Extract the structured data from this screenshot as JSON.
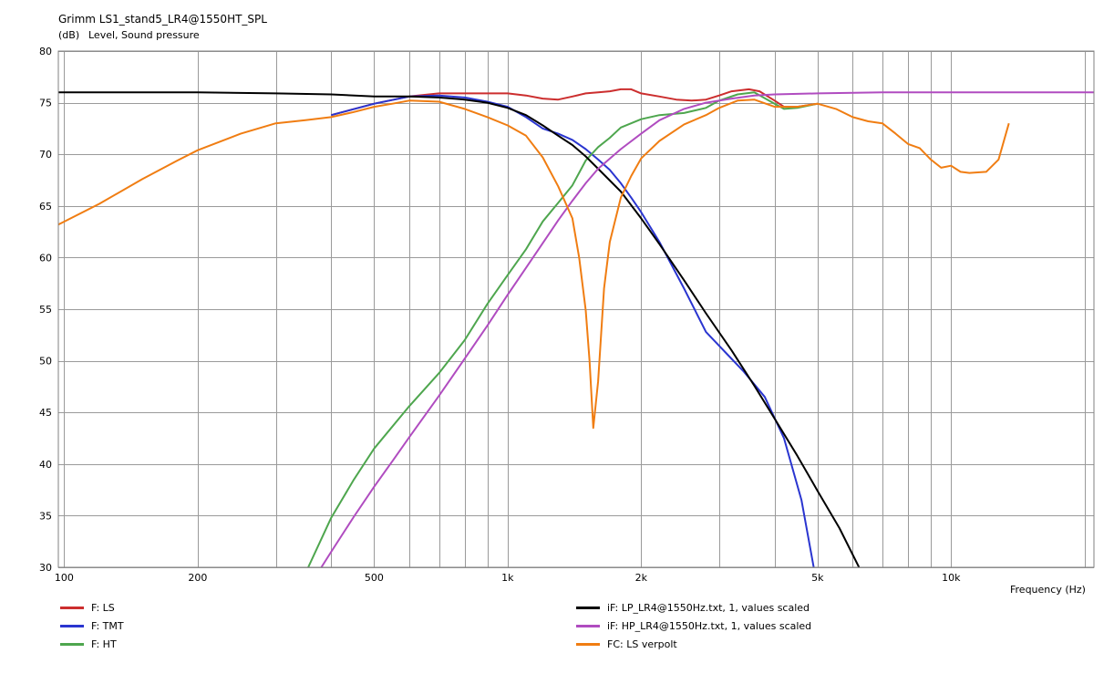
{
  "title": "Grimm LS1_stand5_LR4@1550HT_SPL",
  "ylabel_unit": "(dB)",
  "ylabel_text": "Level, Sound pressure",
  "xlabel": "Frequency  (Hz)",
  "chart_data": {
    "type": "line",
    "title": "Grimm LS1_stand5_LR4@1550HT_SPL",
    "xlabel": "Frequency  (Hz)",
    "ylabel": "(dB)  Level, Sound pressure",
    "x_scale": "log",
    "xlim": [
      97,
      21000
    ],
    "ylim": [
      30,
      80
    ],
    "grid": true,
    "legend_placement": "bottom",
    "x_tick_labels": [
      {
        "value": 100,
        "label": "100"
      },
      {
        "value": 200,
        "label": "200"
      },
      {
        "value": 500,
        "label": "500"
      },
      {
        "value": 1000,
        "label": "1k"
      },
      {
        "value": 2000,
        "label": "2k"
      },
      {
        "value": 5000,
        "label": "5k"
      },
      {
        "value": 10000,
        "label": "10k"
      }
    ],
    "y_ticks": [
      30,
      35,
      40,
      45,
      50,
      55,
      60,
      65,
      70,
      75,
      80
    ],
    "series": [
      {
        "name": "F: LS",
        "color": "#cc2e2e",
        "points": [
          [
            400,
            73.8
          ],
          [
            500,
            74.9
          ],
          [
            600,
            75.6
          ],
          [
            700,
            75.9
          ],
          [
            800,
            75.9
          ],
          [
            900,
            75.9
          ],
          [
            1000,
            75.9
          ],
          [
            1100,
            75.7
          ],
          [
            1200,
            75.4
          ],
          [
            1300,
            75.3
          ],
          [
            1400,
            75.6
          ],
          [
            1500,
            75.9
          ],
          [
            1600,
            76.0
          ],
          [
            1700,
            76.1
          ],
          [
            1800,
            76.3
          ],
          [
            1900,
            76.3
          ],
          [
            2000,
            75.9
          ],
          [
            2200,
            75.6
          ],
          [
            2400,
            75.3
          ],
          [
            2600,
            75.2
          ],
          [
            2800,
            75.3
          ],
          [
            3000,
            75.7
          ],
          [
            3200,
            76.1
          ],
          [
            3500,
            76.3
          ],
          [
            3700,
            76.1
          ],
          [
            4000,
            75.2
          ],
          [
            4200,
            74.6
          ],
          [
            4500,
            74.6
          ],
          [
            5000,
            74.9
          ]
        ]
      },
      {
        "name": "F: TMT",
        "color": "#2a35d0",
        "points": [
          [
            400,
            73.8
          ],
          [
            500,
            74.9
          ],
          [
            600,
            75.6
          ],
          [
            700,
            75.7
          ],
          [
            800,
            75.5
          ],
          [
            900,
            75.1
          ],
          [
            1000,
            74.6
          ],
          [
            1100,
            73.6
          ],
          [
            1200,
            72.5
          ],
          [
            1300,
            72.0
          ],
          [
            1400,
            71.4
          ],
          [
            1500,
            70.5
          ],
          [
            1600,
            69.5
          ],
          [
            1700,
            68.5
          ],
          [
            1800,
            67.2
          ],
          [
            1900,
            65.8
          ],
          [
            2000,
            64.4
          ],
          [
            2200,
            61.5
          ],
          [
            2500,
            57.0
          ],
          [
            2800,
            52.8
          ],
          [
            3100,
            50.8
          ],
          [
            3400,
            49.0
          ],
          [
            3800,
            46.5
          ],
          [
            4200,
            42.5
          ],
          [
            4600,
            36.5
          ],
          [
            4900,
            30.0
          ]
        ]
      },
      {
        "name": "F: HT",
        "color": "#4ea64e",
        "points": [
          [
            355,
            30.0
          ],
          [
            400,
            34.8
          ],
          [
            450,
            38.5
          ],
          [
            500,
            41.5
          ],
          [
            600,
            45.6
          ],
          [
            700,
            48.8
          ],
          [
            800,
            52.0
          ],
          [
            900,
            55.5
          ],
          [
            1000,
            58.3
          ],
          [
            1100,
            60.8
          ],
          [
            1200,
            63.5
          ],
          [
            1300,
            65.3
          ],
          [
            1400,
            67.0
          ],
          [
            1500,
            69.4
          ],
          [
            1600,
            70.7
          ],
          [
            1700,
            71.6
          ],
          [
            1800,
            72.6
          ],
          [
            2000,
            73.4
          ],
          [
            2200,
            73.8
          ],
          [
            2500,
            74.0
          ],
          [
            2800,
            74.5
          ],
          [
            3000,
            75.2
          ],
          [
            3300,
            75.8
          ],
          [
            3600,
            76.0
          ],
          [
            4000,
            74.9
          ],
          [
            4200,
            74.4
          ],
          [
            4500,
            74.5
          ],
          [
            5000,
            74.9
          ]
        ]
      },
      {
        "name": "iF: LP_LR4@1550Hz.txt, 1, values scaled",
        "color": "#000000",
        "points": [
          [
            97,
            76.0
          ],
          [
            200,
            76.0
          ],
          [
            300,
            75.9
          ],
          [
            400,
            75.8
          ],
          [
            500,
            75.6
          ],
          [
            600,
            75.6
          ],
          [
            700,
            75.5
          ],
          [
            800,
            75.3
          ],
          [
            900,
            75.0
          ],
          [
            1000,
            74.5
          ],
          [
            1100,
            73.8
          ],
          [
            1200,
            72.8
          ],
          [
            1300,
            71.8
          ],
          [
            1400,
            70.9
          ],
          [
            1500,
            69.8
          ],
          [
            1600,
            68.6
          ],
          [
            1800,
            66.4
          ],
          [
            2000,
            63.8
          ],
          [
            2200,
            61.3
          ],
          [
            2500,
            57.8
          ],
          [
            2800,
            54.6
          ],
          [
            3200,
            51.0
          ],
          [
            3600,
            47.6
          ],
          [
            4000,
            44.4
          ],
          [
            4500,
            40.8
          ],
          [
            5000,
            37.4
          ],
          [
            5600,
            33.8
          ],
          [
            6200,
            30.0
          ]
        ]
      },
      {
        "name": "iF: HP_LR4@1550Hz.txt, 1, values scaled",
        "color": "#b04cc0",
        "points": [
          [
            380,
            30.0
          ],
          [
            400,
            31.5
          ],
          [
            450,
            34.9
          ],
          [
            500,
            37.8
          ],
          [
            550,
            40.3
          ],
          [
            600,
            42.6
          ],
          [
            700,
            46.6
          ],
          [
            800,
            50.2
          ],
          [
            900,
            53.4
          ],
          [
            1000,
            56.4
          ],
          [
            1100,
            59.0
          ],
          [
            1200,
            61.4
          ],
          [
            1300,
            63.6
          ],
          [
            1400,
            65.5
          ],
          [
            1500,
            67.2
          ],
          [
            1600,
            68.6
          ],
          [
            1800,
            70.5
          ],
          [
            2000,
            72.0
          ],
          [
            2200,
            73.3
          ],
          [
            2500,
            74.4
          ],
          [
            2800,
            75.0
          ],
          [
            3200,
            75.4
          ],
          [
            3600,
            75.7
          ],
          [
            4000,
            75.8
          ],
          [
            5000,
            75.9
          ],
          [
            7000,
            76.0
          ],
          [
            10000,
            76.0
          ],
          [
            21000,
            76.0
          ]
        ]
      },
      {
        "name": "FC: LS verpolt",
        "color": "#f07d12",
        "points": [
          [
            97,
            63.2
          ],
          [
            120,
            65.2
          ],
          [
            150,
            67.6
          ],
          [
            180,
            69.4
          ],
          [
            200,
            70.4
          ],
          [
            250,
            72.0
          ],
          [
            300,
            73.0
          ],
          [
            350,
            73.3
          ],
          [
            400,
            73.6
          ],
          [
            450,
            74.1
          ],
          [
            500,
            74.6
          ],
          [
            550,
            74.9
          ],
          [
            600,
            75.2
          ],
          [
            700,
            75.1
          ],
          [
            800,
            74.4
          ],
          [
            900,
            73.6
          ],
          [
            1000,
            72.8
          ],
          [
            1100,
            71.8
          ],
          [
            1200,
            69.7
          ],
          [
            1300,
            66.9
          ],
          [
            1400,
            63.8
          ],
          [
            1450,
            60.0
          ],
          [
            1500,
            54.9
          ],
          [
            1530,
            50.0
          ],
          [
            1560,
            43.5
          ],
          [
            1600,
            48.0
          ],
          [
            1650,
            57.0
          ],
          [
            1700,
            61.5
          ],
          [
            1800,
            65.8
          ],
          [
            1900,
            67.9
          ],
          [
            2000,
            69.6
          ],
          [
            2200,
            71.3
          ],
          [
            2500,
            72.9
          ],
          [
            2800,
            73.8
          ],
          [
            3000,
            74.5
          ],
          [
            3300,
            75.2
          ],
          [
            3600,
            75.3
          ],
          [
            4000,
            74.6
          ],
          [
            4500,
            74.6
          ],
          [
            5000,
            74.9
          ],
          [
            5500,
            74.4
          ],
          [
            6000,
            73.6
          ],
          [
            6500,
            73.2
          ],
          [
            7000,
            73.0
          ],
          [
            7500,
            72.0
          ],
          [
            8000,
            71.0
          ],
          [
            8500,
            70.6
          ],
          [
            9000,
            69.5
          ],
          [
            9500,
            68.7
          ],
          [
            10000,
            68.9
          ],
          [
            10500,
            68.3
          ],
          [
            11000,
            68.2
          ],
          [
            12000,
            68.3
          ],
          [
            12800,
            69.5
          ],
          [
            13500,
            73.0
          ]
        ]
      }
    ]
  }
}
